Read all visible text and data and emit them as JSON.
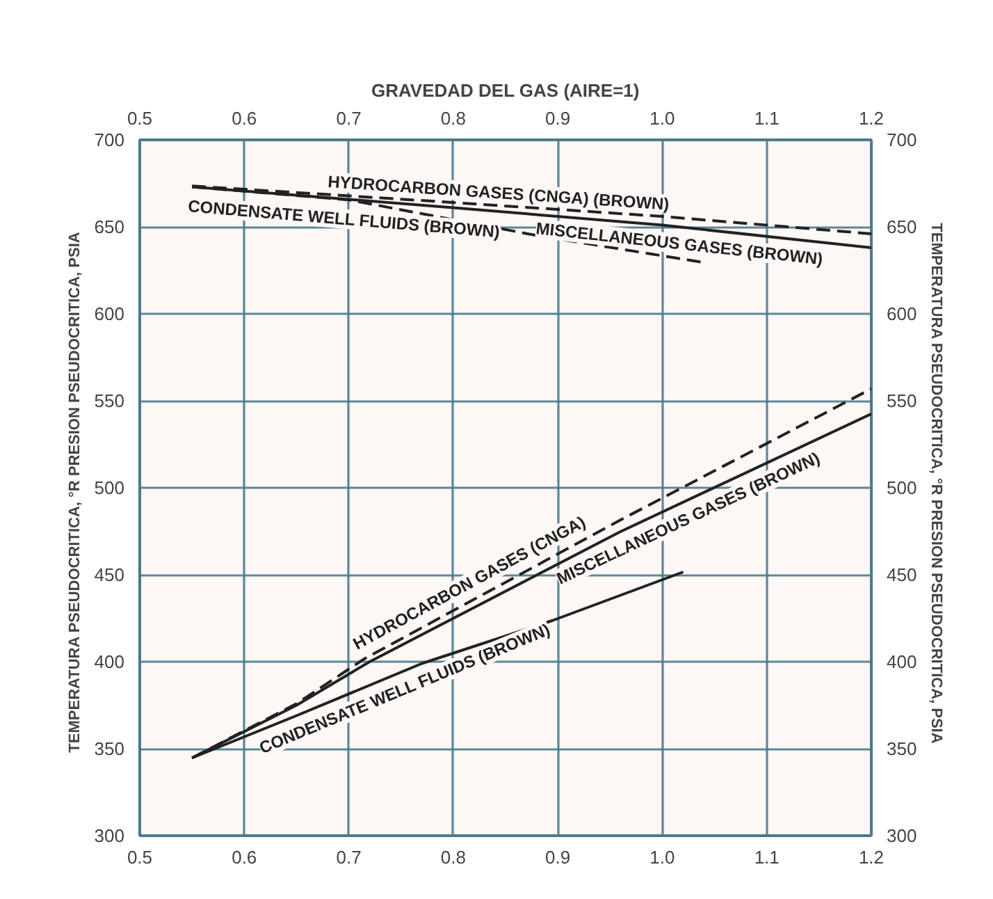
{
  "chart_data": {
    "type": "line",
    "x2label": "GRAVEDAD DEL GAS (AIRE=1)",
    "ylabel": "TEMPERATURA PSEUDOCRITICA, °R   PRESION PSEUDOCRITICA, PSIA",
    "y2label": "TEMPERATURA PSEUDOCRITICA, °R   PRESION PSEUDOCRITICA, PSIA",
    "xlim": [
      0.5,
      1.2
    ],
    "xticks": [
      0.5,
      0.6,
      0.7,
      0.8,
      0.9,
      {
        "value": 1.0,
        "label": "1.0"
      },
      1.1,
      1.2
    ],
    "x2lim": [
      0.5,
      1.2
    ],
    "x2ticks": [
      0.5,
      0.6,
      0.7,
      0.8,
      0.9,
      {
        "value": 1.0,
        "label": "1.0"
      },
      1.1,
      1.2
    ],
    "ylim": [
      300,
      700
    ],
    "yticks": [
      300,
      350,
      400,
      450,
      500,
      550,
      600,
      650,
      700
    ],
    "y2lim": [
      300,
      700
    ],
    "y2ticks": [
      300,
      350,
      400,
      450,
      500,
      550,
      600,
      650,
      700
    ],
    "grid": true,
    "legend": false,
    "marker": "none",
    "series": [
      {
        "name": "HYDROCARBON GASES (CNGA) (BROWN)",
        "color": "#222222",
        "line_style": "dashed",
        "x": [
          0.55,
          0.8,
          1.0,
          1.2
        ],
        "values": [
          673.5,
          664,
          656,
          646
        ]
      },
      {
        "name": "MISCELLANEOUS GASES (BROWN)",
        "color": "#222222",
        "line_style": "solid",
        "x": [
          0.55,
          0.8,
          1.0,
          1.2
        ],
        "values": [
          673,
          661,
          651,
          638
        ]
      },
      {
        "name": "CONDENSATE WELL FLUIDS (BROWN)",
        "color": "#222222",
        "line_style": "dashed",
        "x": [
          0.55,
          0.7,
          0.88,
          1.04
        ],
        "values": [
          673,
          665.5,
          645,
          629.5
        ]
      },
      {
        "name": "HYDROCARBON GASES (CNGA)",
        "color": "#222222",
        "line_style": "dashed",
        "x": [
          0.55,
          0.65,
          0.715,
          0.96,
          1.2
        ],
        "values": [
          344.7,
          375.9,
          401.7,
          481.5,
          556.9
        ]
      },
      {
        "name": "MISCELLANEOUS GASES (BROWN)",
        "color": "#222222",
        "line_style": "solid",
        "x": [
          0.55,
          0.65,
          0.72,
          0.96,
          1.2
        ],
        "values": [
          344.7,
          375,
          400,
          474.8,
          542.5
        ]
      },
      {
        "name": "CONDENSATE WELL FLUIDS (BROWN)",
        "color": "#222222",
        "line_style": "solid",
        "x": [
          0.55,
          0.65,
          0.77,
          0.895,
          1.02
        ],
        "values": [
          344.7,
          369,
          399,
          423.7,
          451.6
        ]
      }
    ]
  }
}
